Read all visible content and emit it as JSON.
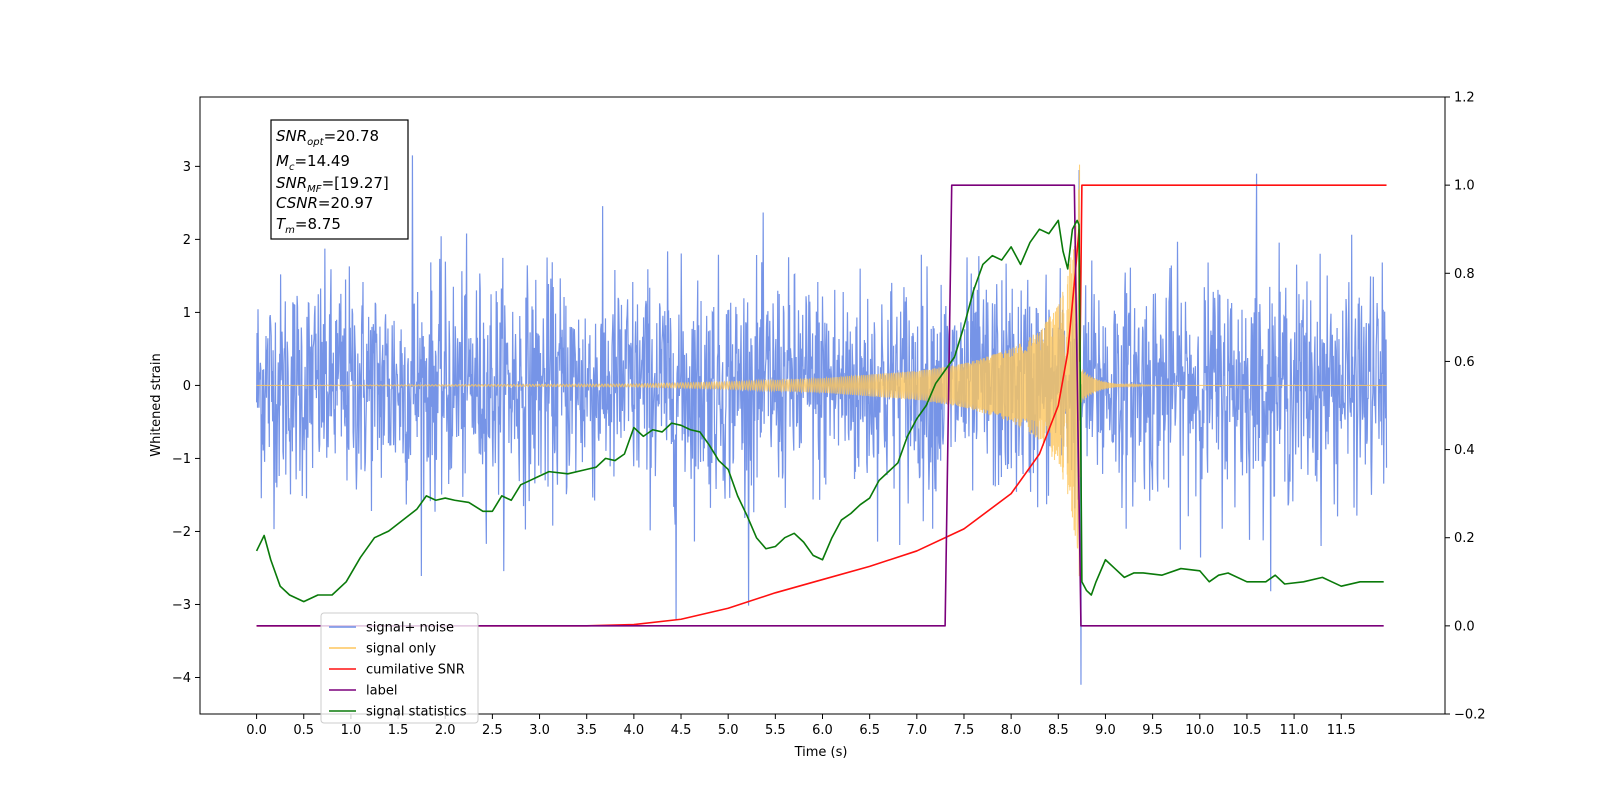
{
  "chart_data": {
    "type": "line",
    "xlabel": "Time (s)",
    "ylabel": "Whitened strain",
    "xlim": [
      -0.6,
      12.6
    ],
    "ylim": [
      -4.5,
      3.95
    ],
    "y2lim": [
      -0.2,
      1.2
    ],
    "x_ticks": [
      "0.0",
      "0.5",
      "1.0",
      "1.5",
      "2.0",
      "2.5",
      "3.0",
      "3.5",
      "4.0",
      "4.5",
      "5.0",
      "5.5",
      "6.0",
      "6.5",
      "7.0",
      "7.5",
      "8.0",
      "8.5",
      "9.0",
      "9.5",
      "10.0",
      "10.5",
      "11.0",
      "11.5"
    ],
    "y_ticks": [
      "3",
      "2",
      "1",
      "0",
      "−1",
      "−2",
      "−3",
      "−4"
    ],
    "y2_ticks": [
      "1.2",
      "1.0",
      "0.8",
      "0.6",
      "0.4",
      "0.2",
      "0.0",
      "−0.2"
    ],
    "annotation": {
      "snr_opt": {
        "base": "SNR",
        "sub": "opt",
        "value": "=20.78"
      },
      "mc": {
        "base": "M",
        "sub": "c",
        "value": "=14.49"
      },
      "snr_mf": {
        "base": "SNR",
        "sub": "MF",
        "value": "=[19.27]"
      },
      "csnr": {
        "base": "CSNR",
        "value": "=20.97"
      },
      "tm": {
        "base": "T",
        "sub": "m",
        "value": "=8.75"
      }
    },
    "legend_position": "lower-left",
    "series": [
      {
        "name": "signal+ noise",
        "color": "#6f8ee6",
        "axis": "left",
        "x": [
          0.0,
          11.98
        ],
        "noise_sigma": 0.75,
        "noise_min": -3.2,
        "noise_max": 3.15,
        "spikes": [
          {
            "x": 1.65,
            "y": 3.15
          },
          {
            "x": 4.45,
            "y": -3.2
          },
          {
            "x": 8.74,
            "y": -4.1
          },
          {
            "x": 8.72,
            "y": 2.95
          },
          {
            "x": 10.6,
            "y": 2.9
          }
        ]
      },
      {
        "name": "signal only",
        "color": "#fdc55d",
        "axis": "left",
        "envelope": [
          [
            0.0,
            0.0
          ],
          [
            4.0,
            0.02
          ],
          [
            5.0,
            0.05
          ],
          [
            6.0,
            0.1
          ],
          [
            7.0,
            0.2
          ],
          [
            7.5,
            0.3
          ],
          [
            8.0,
            0.5
          ],
          [
            8.3,
            0.75
          ],
          [
            8.5,
            1.1
          ],
          [
            8.6,
            1.5
          ],
          [
            8.7,
            2.3
          ],
          [
            8.73,
            3.6
          ]
        ]
      },
      {
        "name": "cumilative SNR",
        "color": "#ff1010",
        "axis": "right",
        "x": [
          0.0,
          3.5,
          4.0,
          4.5,
          5.0,
          5.5,
          6.0,
          6.5,
          7.0,
          7.5,
          8.0,
          8.3,
          8.5,
          8.6,
          8.68,
          8.72,
          8.73,
          8.75,
          11.98
        ],
        "values": [
          0.0,
          0.0,
          0.003,
          0.015,
          0.04,
          0.075,
          0.105,
          0.135,
          0.17,
          0.22,
          0.3,
          0.39,
          0.5,
          0.62,
          0.8,
          0.9,
          0.6,
          1.0,
          1.0
        ]
      },
      {
        "name": "label",
        "color": "#7b007b",
        "axis": "right",
        "x": [
          0.0,
          7.3,
          7.37,
          8.67,
          8.74,
          11.95
        ],
        "values": [
          0.0,
          0.0,
          1.0,
          1.0,
          0.0,
          0.0
        ]
      },
      {
        "name": "signal statistics",
        "color": "#0a7a0a",
        "axis": "right",
        "x": [
          0.0,
          0.08,
          0.15,
          0.25,
          0.35,
          0.5,
          0.65,
          0.8,
          0.95,
          1.1,
          1.25,
          1.4,
          1.55,
          1.7,
          1.8,
          1.9,
          2.0,
          2.1,
          2.25,
          2.4,
          2.5,
          2.6,
          2.7,
          2.8,
          2.9,
          3.0,
          3.1,
          3.3,
          3.5,
          3.6,
          3.7,
          3.8,
          3.9,
          4.0,
          4.1,
          4.2,
          4.3,
          4.4,
          4.5,
          4.6,
          4.7,
          4.8,
          4.9,
          5.0,
          5.1,
          5.2,
          5.3,
          5.4,
          5.5,
          5.6,
          5.7,
          5.8,
          5.9,
          6.0,
          6.1,
          6.2,
          6.3,
          6.4,
          6.5,
          6.6,
          6.7,
          6.8,
          6.9,
          7.0,
          7.1,
          7.2,
          7.3,
          7.4,
          7.5,
          7.6,
          7.7,
          7.8,
          7.9,
          8.0,
          8.1,
          8.2,
          8.3,
          8.4,
          8.5,
          8.55,
          8.6,
          8.65,
          8.7,
          8.72,
          8.75,
          8.8,
          8.85,
          8.9,
          9.0,
          9.1,
          9.2,
          9.3,
          9.4,
          9.6,
          9.8,
          10.0,
          10.1,
          10.2,
          10.3,
          10.5,
          10.7,
          10.8,
          10.9,
          11.1,
          11.3,
          11.4,
          11.5,
          11.7,
          11.95
        ],
        "values": [
          0.17,
          0.205,
          0.15,
          0.09,
          0.07,
          0.055,
          0.07,
          0.07,
          0.1,
          0.155,
          0.2,
          0.215,
          0.24,
          0.265,
          0.295,
          0.285,
          0.29,
          0.285,
          0.28,
          0.26,
          0.26,
          0.295,
          0.285,
          0.32,
          0.33,
          0.34,
          0.35,
          0.345,
          0.355,
          0.36,
          0.38,
          0.375,
          0.39,
          0.45,
          0.43,
          0.445,
          0.44,
          0.46,
          0.455,
          0.445,
          0.44,
          0.41,
          0.375,
          0.355,
          0.295,
          0.25,
          0.2,
          0.175,
          0.18,
          0.2,
          0.21,
          0.19,
          0.16,
          0.15,
          0.2,
          0.24,
          0.255,
          0.275,
          0.29,
          0.33,
          0.35,
          0.37,
          0.43,
          0.47,
          0.5,
          0.55,
          0.58,
          0.61,
          0.68,
          0.76,
          0.82,
          0.84,
          0.83,
          0.86,
          0.82,
          0.87,
          0.9,
          0.89,
          0.92,
          0.85,
          0.81,
          0.9,
          0.92,
          0.91,
          0.1,
          0.08,
          0.07,
          0.1,
          0.15,
          0.13,
          0.11,
          0.12,
          0.12,
          0.115,
          0.13,
          0.125,
          0.1,
          0.115,
          0.12,
          0.1,
          0.1,
          0.115,
          0.095,
          0.1,
          0.11,
          0.1,
          0.09,
          0.1,
          0.1
        ]
      }
    ]
  }
}
